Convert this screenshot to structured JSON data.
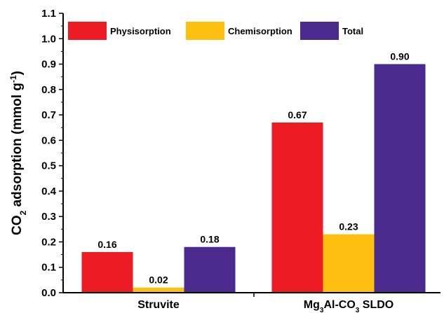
{
  "chart_data": {
    "type": "bar",
    "title": "",
    "xlabel": "",
    "ylabel": {
      "parts": [
        {
          "text": "CO",
          "shift": "normal"
        },
        {
          "text": "2",
          "shift": "sub"
        },
        {
          "text": " adsorption (mmol g",
          "shift": "normal"
        },
        {
          "text": "-1",
          "shift": "super"
        },
        {
          "text": ")",
          "shift": "normal"
        }
      ]
    },
    "ylim": [
      0,
      1.1
    ],
    "yticks": [
      "0.0",
      "0.1",
      "0.2",
      "0.3",
      "0.4",
      "0.5",
      "0.6",
      "0.7",
      "0.8",
      "0.9",
      "1.0",
      "1.1"
    ],
    "ytick_values": [
      0,
      0.1,
      0.2,
      0.3,
      0.4,
      0.5,
      0.6,
      0.7,
      0.8,
      0.9,
      1.0,
      1.1
    ],
    "categories": [
      {
        "parts": [
          {
            "text": "Struvite",
            "shift": "normal"
          }
        ]
      },
      {
        "parts": [
          {
            "text": "Mg",
            "shift": "normal"
          },
          {
            "text": "3",
            "shift": "sub"
          },
          {
            "text": "Al-CO",
            "shift": "normal"
          },
          {
            "text": "3",
            "shift": "sub"
          },
          {
            "text": " SLDO",
            "shift": "normal"
          }
        ]
      }
    ],
    "series": [
      {
        "name": "Physisorption",
        "color": "#ed1c24",
        "values": [
          0.16,
          0.67
        ],
        "labels": [
          "0.16",
          "0.67"
        ]
      },
      {
        "name": "Chemisorption",
        "color": "#fdc010",
        "values": [
          0.02,
          0.23
        ],
        "labels": [
          "0.02",
          "0.23"
        ]
      },
      {
        "name": "Total",
        "color": "#4b2a8e",
        "values": [
          0.18,
          0.9
        ],
        "labels": [
          "0.18",
          "0.90"
        ]
      }
    ],
    "legend_position": "top-left",
    "grid": false
  }
}
